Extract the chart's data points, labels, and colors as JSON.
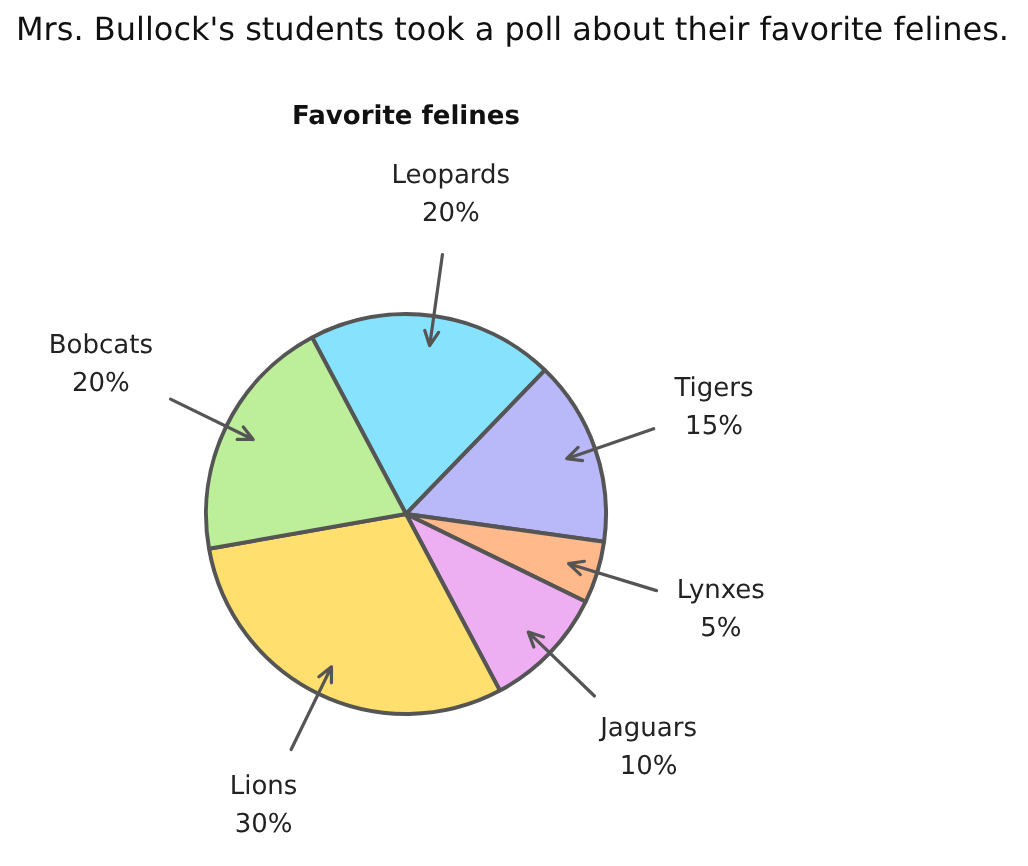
{
  "chart_data": {
    "type": "pie",
    "title": "Favorite felines",
    "annotations": [
      "Mrs. Bullock's students took a poll about their favorite felines."
    ],
    "categories": [
      "Leopards",
      "Tigers",
      "Lynxes",
      "Jaguars",
      "Lions",
      "Bobcats"
    ],
    "values": [
      20,
      15,
      5,
      10,
      30,
      20
    ],
    "value_labels": [
      "20%",
      "15%",
      "5%",
      "10%",
      "30%",
      "20%"
    ],
    "colors": [
      "#87e3fd",
      "#b9b8f8",
      "#ffb98a",
      "#edaef2",
      "#ffe06f",
      "#bdee9a"
    ],
    "legend": false
  }
}
